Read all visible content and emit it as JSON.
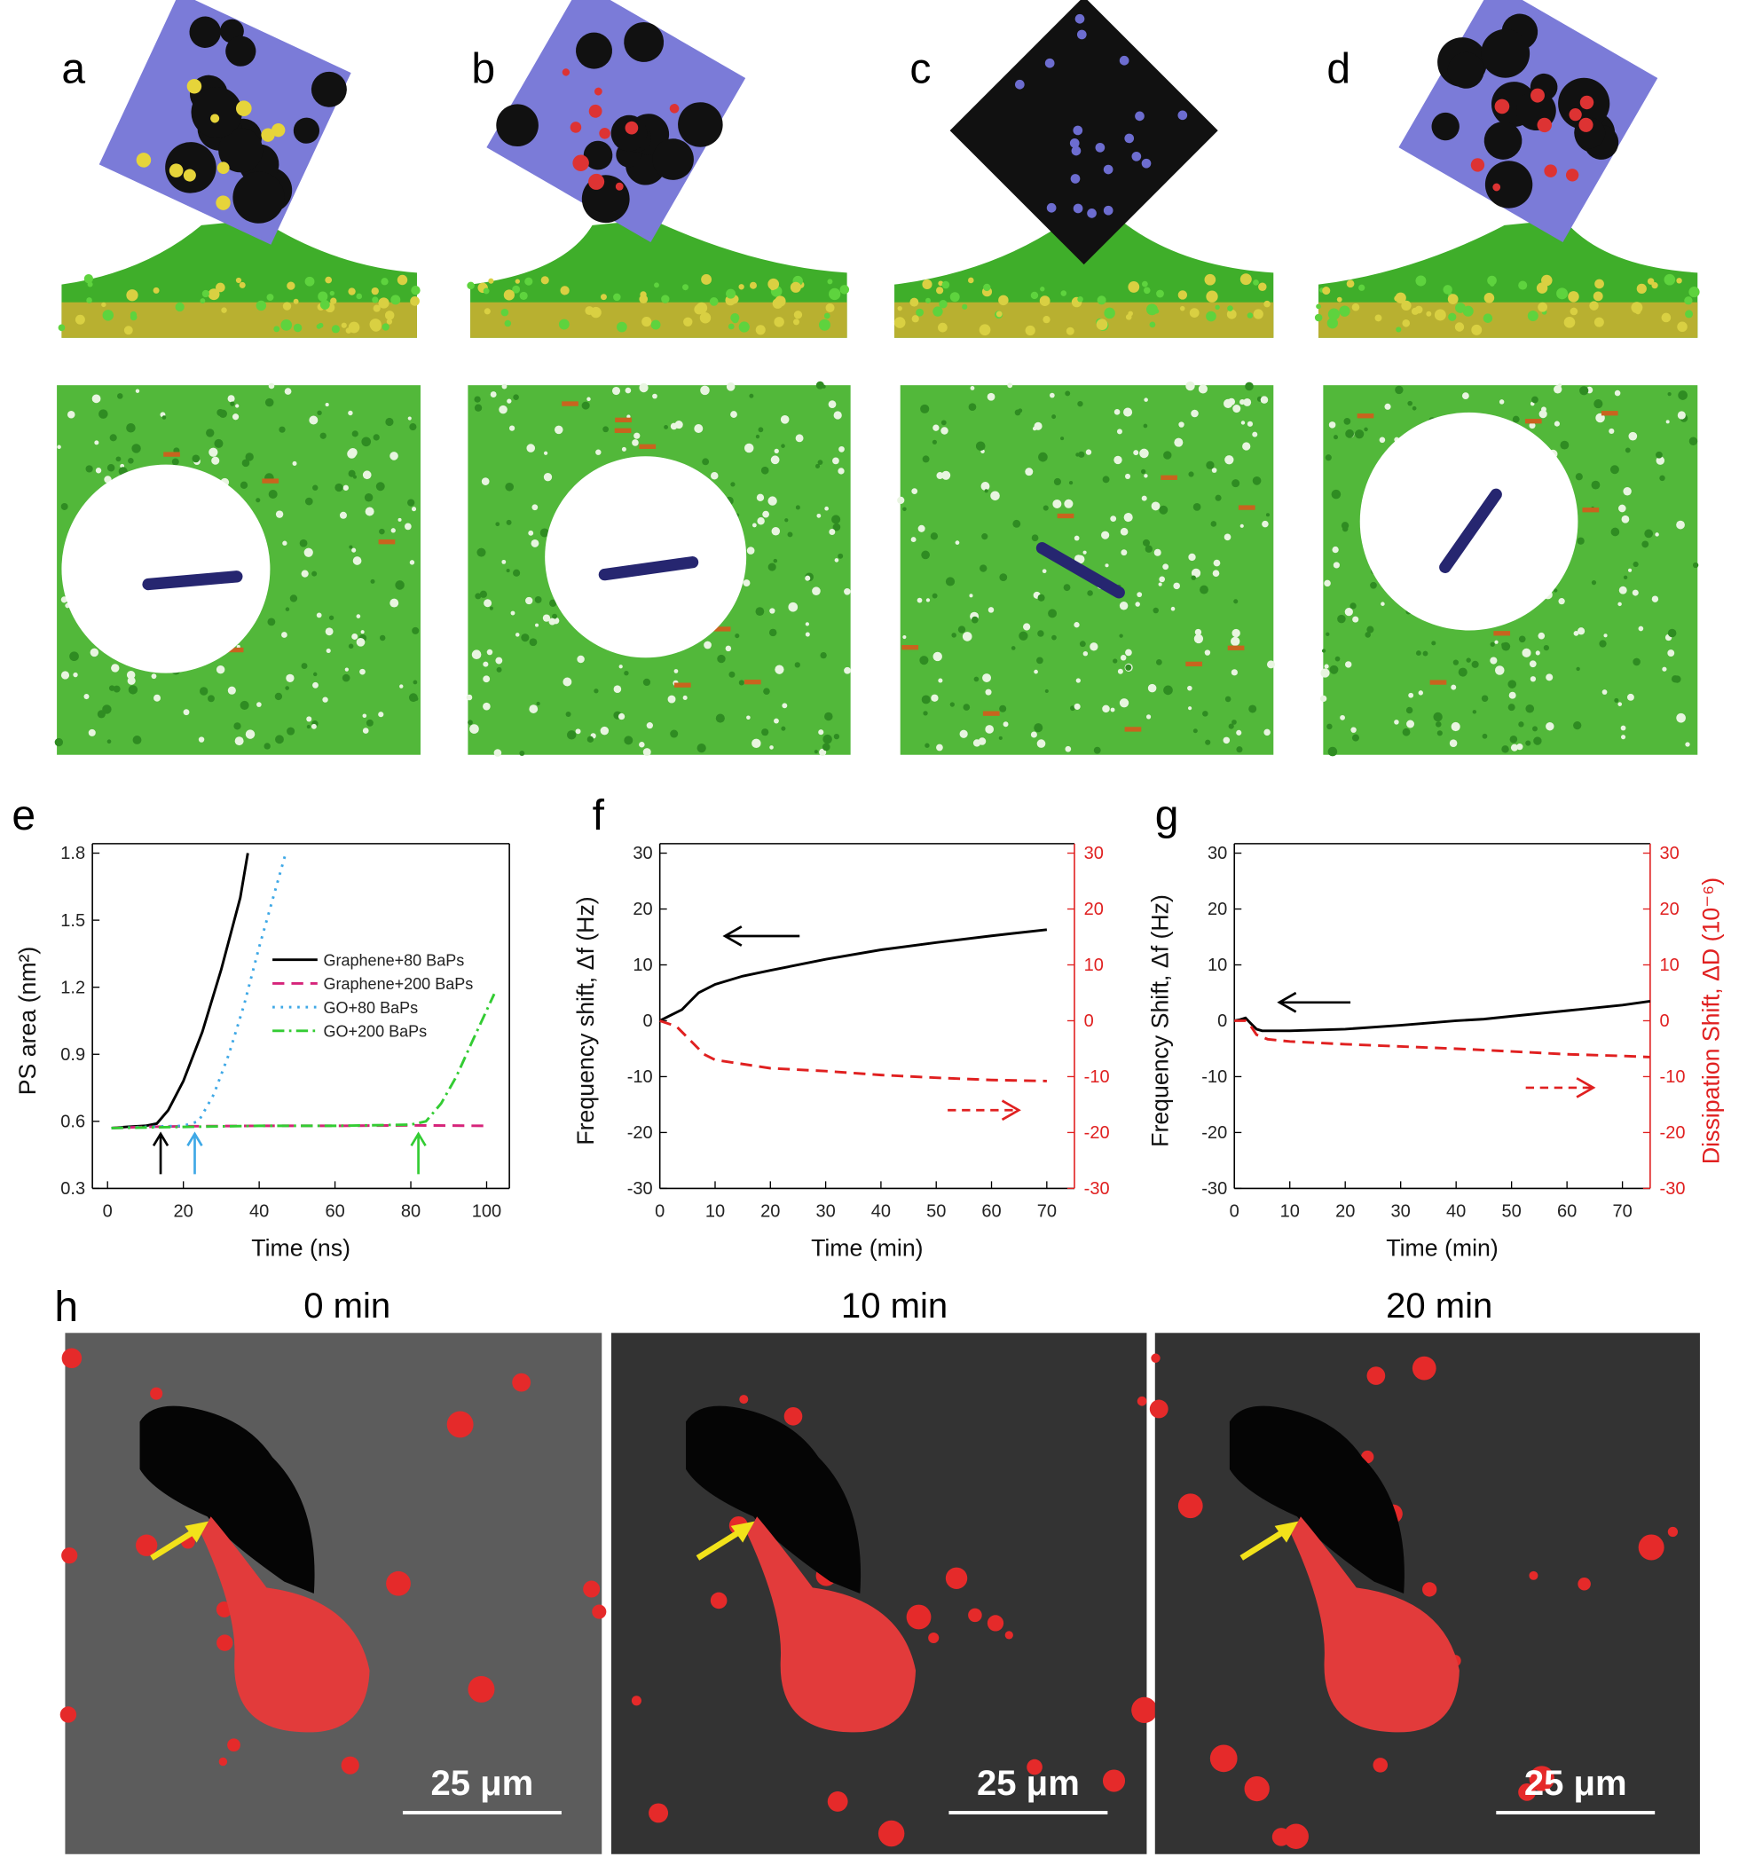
{
  "panels": {
    "labels": [
      "a",
      "b",
      "c",
      "d",
      "e",
      "f",
      "g",
      "h"
    ]
  },
  "h": {
    "times": [
      "0 min",
      "10 min",
      "20 min"
    ],
    "scale_bars": [
      "25 μm",
      "25 μm",
      "25 μm"
    ]
  },
  "chart_data": [
    {
      "type": "line",
      "xlabel": "Time (ns)",
      "ylabel": "PS area (nm²)",
      "xlim": [
        -4,
        106
      ],
      "xticks": [
        0,
        20,
        40,
        60,
        80,
        100
      ],
      "ylim": [
        0.3,
        1.8
      ],
      "yticks": [
        0.3,
        0.6,
        0.9,
        1.2,
        1.5,
        1.8
      ],
      "legend": "right",
      "series": [
        {
          "name": "Graphene+80 BaPs",
          "color": "#000000",
          "dash": "solid",
          "x": [
            1,
            5,
            10,
            13,
            16,
            20,
            25,
            30,
            35,
            37
          ],
          "values": [
            0.57,
            0.575,
            0.58,
            0.59,
            0.65,
            0.78,
            1.0,
            1.28,
            1.6,
            1.8
          ]
        },
        {
          "name": "Graphene+200 BaPs",
          "color": "#d6247a",
          "dash": "dashed",
          "x": [
            1,
            10,
            20,
            40,
            60,
            80,
            100
          ],
          "values": [
            0.57,
            0.575,
            0.578,
            0.58,
            0.58,
            0.582,
            0.58
          ]
        },
        {
          "name": "GO+80 BaPs",
          "color": "#3ea8e6",
          "dash": "dotted",
          "x": [
            1,
            10,
            20,
            24,
            28,
            32,
            36,
            40,
            44,
            47
          ],
          "values": [
            0.57,
            0.575,
            0.58,
            0.6,
            0.72,
            0.9,
            1.12,
            1.38,
            1.62,
            1.8
          ]
        },
        {
          "name": "GO+200 BaPs",
          "color": "#33cc33",
          "dash": "dashdot",
          "x": [
            1,
            20,
            40,
            60,
            80,
            84,
            88,
            92,
            96,
            102
          ],
          "values": [
            0.57,
            0.575,
            0.58,
            0.58,
            0.585,
            0.6,
            0.68,
            0.8,
            0.95,
            1.17
          ]
        }
      ],
      "arrows": [
        {
          "x": 14,
          "color": "#000000"
        },
        {
          "x": 23,
          "color": "#3ea8e6"
        },
        {
          "x": 82,
          "color": "#33cc33"
        }
      ]
    },
    {
      "type": "line",
      "ylabel": "Frequency shift, Δf (Hz)",
      "xlabel": "Time (min)",
      "xlim": [
        0,
        75
      ],
      "xticks": [
        0,
        10,
        20,
        30,
        40,
        50,
        60,
        70
      ],
      "ylim": [
        -30,
        30
      ],
      "yticks": [
        -30,
        -20,
        -10,
        0,
        10,
        20,
        30
      ],
      "y2lim": [
        -30,
        30
      ],
      "y2ticks": [
        -30,
        -20,
        -10,
        0,
        10,
        20,
        30
      ],
      "y2color": "#e02020",
      "series": [
        {
          "color": "#000000",
          "dash": "solid",
          "x": [
            0,
            2,
            4,
            5,
            7,
            10,
            15,
            20,
            30,
            40,
            50,
            60,
            70
          ],
          "values": [
            0,
            1,
            2,
            3,
            5,
            6.5,
            8,
            9,
            11,
            12.7,
            14,
            15.2,
            16.3
          ]
        },
        {
          "color": "#e02020",
          "dash": "dashed",
          "axis": "y2",
          "x": [
            0,
            3,
            5,
            8,
            10,
            20,
            30,
            40,
            50,
            60,
            70
          ],
          "values": [
            0,
            -1,
            -3,
            -6,
            -7,
            -8.5,
            -9,
            -9.7,
            -10.2,
            -10.6,
            -10.8
          ]
        }
      ]
    },
    {
      "type": "line",
      "ylabel": "Frequency Shift, Δf (Hz)",
      "xlabel": "Time (min)",
      "y2label": "Dissipation Shift, ΔD (10⁻⁶)",
      "xlim": [
        0,
        75
      ],
      "xticks": [
        0,
        10,
        20,
        30,
        40,
        50,
        60,
        70
      ],
      "ylim": [
        -30,
        30
      ],
      "yticks": [
        -30,
        -20,
        -10,
        0,
        10,
        20,
        30
      ],
      "y2lim": [
        -30,
        30
      ],
      "y2ticks": [
        -30,
        -20,
        -10,
        0,
        10,
        20,
        30
      ],
      "y2color": "#e02020",
      "series": [
        {
          "color": "#000000",
          "dash": "solid",
          "x": [
            0,
            1,
            2,
            3,
            4,
            5,
            10,
            20,
            30,
            40,
            45,
            50,
            60,
            70,
            75
          ],
          "values": [
            0,
            0.2,
            0.5,
            -0.5,
            -1.5,
            -1.8,
            -1.8,
            -1.5,
            -0.8,
            0,
            0.3,
            0.8,
            1.8,
            2.8,
            3.5
          ]
        },
        {
          "color": "#e02020",
          "dash": "dashed",
          "axis": "y2",
          "x": [
            0,
            2,
            3,
            4,
            6,
            10,
            20,
            30,
            40,
            50,
            60,
            70,
            75
          ],
          "values": [
            0,
            0,
            -1,
            -2.5,
            -3.3,
            -3.7,
            -4.2,
            -4.6,
            -5,
            -5.5,
            -6,
            -6.3,
            -6.5
          ]
        }
      ]
    }
  ]
}
